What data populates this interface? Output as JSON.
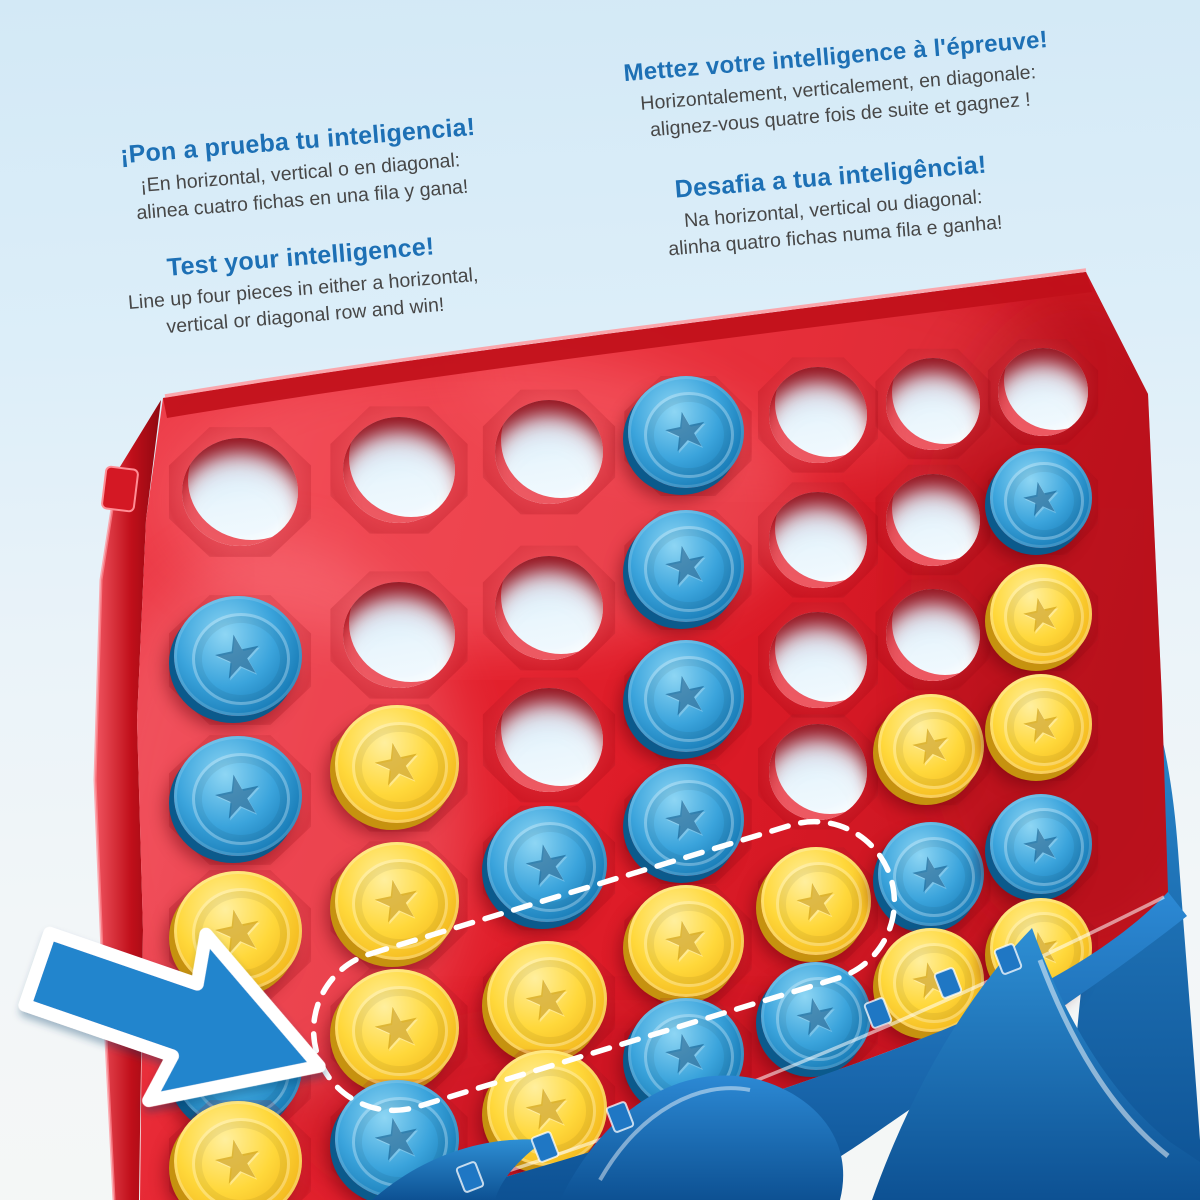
{
  "intro": {
    "blocks": [
      {
        "lang": "es",
        "title": "¡Pon a prueba tu inteligencia!",
        "line1": "¡En horizontal, vertical o en diagonal:",
        "line2": "alinea cuatro fichas en una fila y gana!"
      },
      {
        "lang": "en",
        "title": "Test your intelligence!",
        "line1": "Line up four pieces in either a horizontal,",
        "line2": "vertical or diagonal row and win!"
      },
      {
        "lang": "fr",
        "title": "Mettez votre intelligence à l'épreuve!",
        "line1": "Horizontalement, verticalement, en diagonale:",
        "line2": "alignez-vous quatre fois de suite et gagnez !"
      },
      {
        "lang": "pt",
        "title": "Desafia a tua inteligência!",
        "line1": "Na horizontal, vertical ou diagonal:",
        "line2": "alinha quatro fichas numa fila e ganha!"
      }
    ]
  },
  "board": {
    "columns": 7,
    "rows": 6,
    "legend": {
      "B": "blue-piece",
      "Y": "yellow-piece",
      ".": "empty-hole"
    },
    "grid": [
      "...B...",
      "B..B..B",
      "BY.B..Y",
      "YYBB.YY",
      "BYYYYBB",
      "YBYBBYY"
    ]
  },
  "highlight": {
    "type": "winning-row",
    "row": 5,
    "columns": [
      2,
      3,
      4,
      5
    ],
    "piece_color": "yellow",
    "style": "white-dashed-capsule"
  },
  "arrow": {
    "icon": "arrow-icon",
    "direction": "down-right",
    "points_to": "winning-row"
  },
  "colors": {
    "background": "#d9ecf8",
    "board_red": "#e2202c",
    "piece_blue": "#2f9ad6",
    "piece_yellow": "#ffd231",
    "stand_blue": "#1d79c4",
    "headline_blue": "#1d70b5",
    "body_text": "#474747",
    "highlight_dash": "#ffffff"
  }
}
